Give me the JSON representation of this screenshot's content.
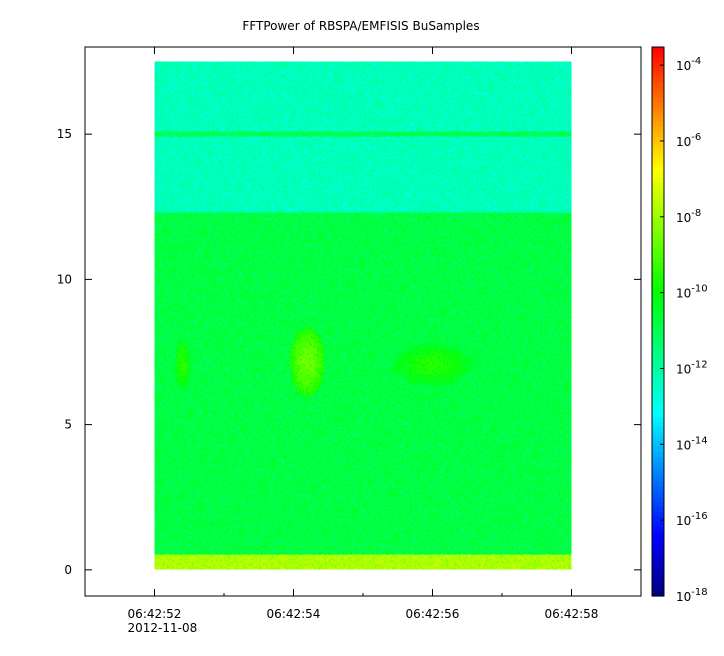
{
  "chart_data": {
    "type": "heatmap",
    "title": "FFTPower of RBSPA/EMFISIS  BuSamples",
    "xlabel": "",
    "ylabel": "",
    "x_ticks": [
      {
        "label": "06:42:52",
        "sublabel": "2012-11-08",
        "t": 52
      },
      {
        "label": "06:42:54",
        "t": 54
      },
      {
        "label": "06:42:56",
        "t": 56
      },
      {
        "label": "06:42:58",
        "t": 58
      }
    ],
    "x_minor_ticks": [
      51,
      53,
      55,
      57
    ],
    "xlim": [
      51.0,
      59.0
    ],
    "x_data_range": [
      52.0,
      58.0
    ],
    "y_ticks": [
      0,
      5,
      10,
      15
    ],
    "ylim": [
      -0.9,
      18.0
    ],
    "y_data_range": [
      0,
      17.5
    ],
    "colorbar": {
      "scale": "log",
      "range": [
        1e-18,
        0.0003
      ],
      "tick_labels": [
        {
          "base": "10",
          "exp": "-4",
          "value": -4
        },
        {
          "base": "10",
          "exp": "-6",
          "value": -6
        },
        {
          "base": "10",
          "exp": "-8",
          "value": -8
        },
        {
          "base": "10",
          "exp": "-10",
          "value": -10
        },
        {
          "base": "10",
          "exp": "-12",
          "value": -12
        },
        {
          "base": "10",
          "exp": "-14",
          "value": -14
        },
        {
          "base": "10",
          "exp": "-16",
          "value": -16
        },
        {
          "base": "10",
          "exp": "-18",
          "value": -18
        }
      ],
      "colormap": [
        "#00007f",
        "#0000ff",
        "#0080ff",
        "#00ffff",
        "#00ff80",
        "#00ff00",
        "#80ff00",
        "#ffff00",
        "#ff8000",
        "#ff0000"
      ]
    },
    "features": [
      {
        "name": "low-frequency band",
        "y_range": [
          0,
          0.5
        ],
        "level": -7.8
      },
      {
        "name": "main band",
        "y_range": [
          0.5,
          12.3
        ],
        "level": -10.8
      },
      {
        "name": "upper band",
        "y_range": [
          12.3,
          17.5
        ],
        "level": -12.3
      },
      {
        "name": "line",
        "y_range": [
          14.9,
          15.1
        ],
        "level": -11.0
      },
      {
        "name": "emission",
        "t_range": [
          52.3,
          52.5
        ],
        "y_range": [
          6.3,
          7.8
        ],
        "level": -9.5
      },
      {
        "name": "emission",
        "t_range": [
          54.0,
          54.4
        ],
        "y_range": [
          6.2,
          8.1
        ],
        "level": -8.6
      },
      {
        "name": "emission",
        "t_range": [
          55.5,
          56.5
        ],
        "y_range": [
          6.4,
          7.7
        ],
        "level": -9.6
      }
    ],
    "grid": false,
    "legend": "none"
  }
}
